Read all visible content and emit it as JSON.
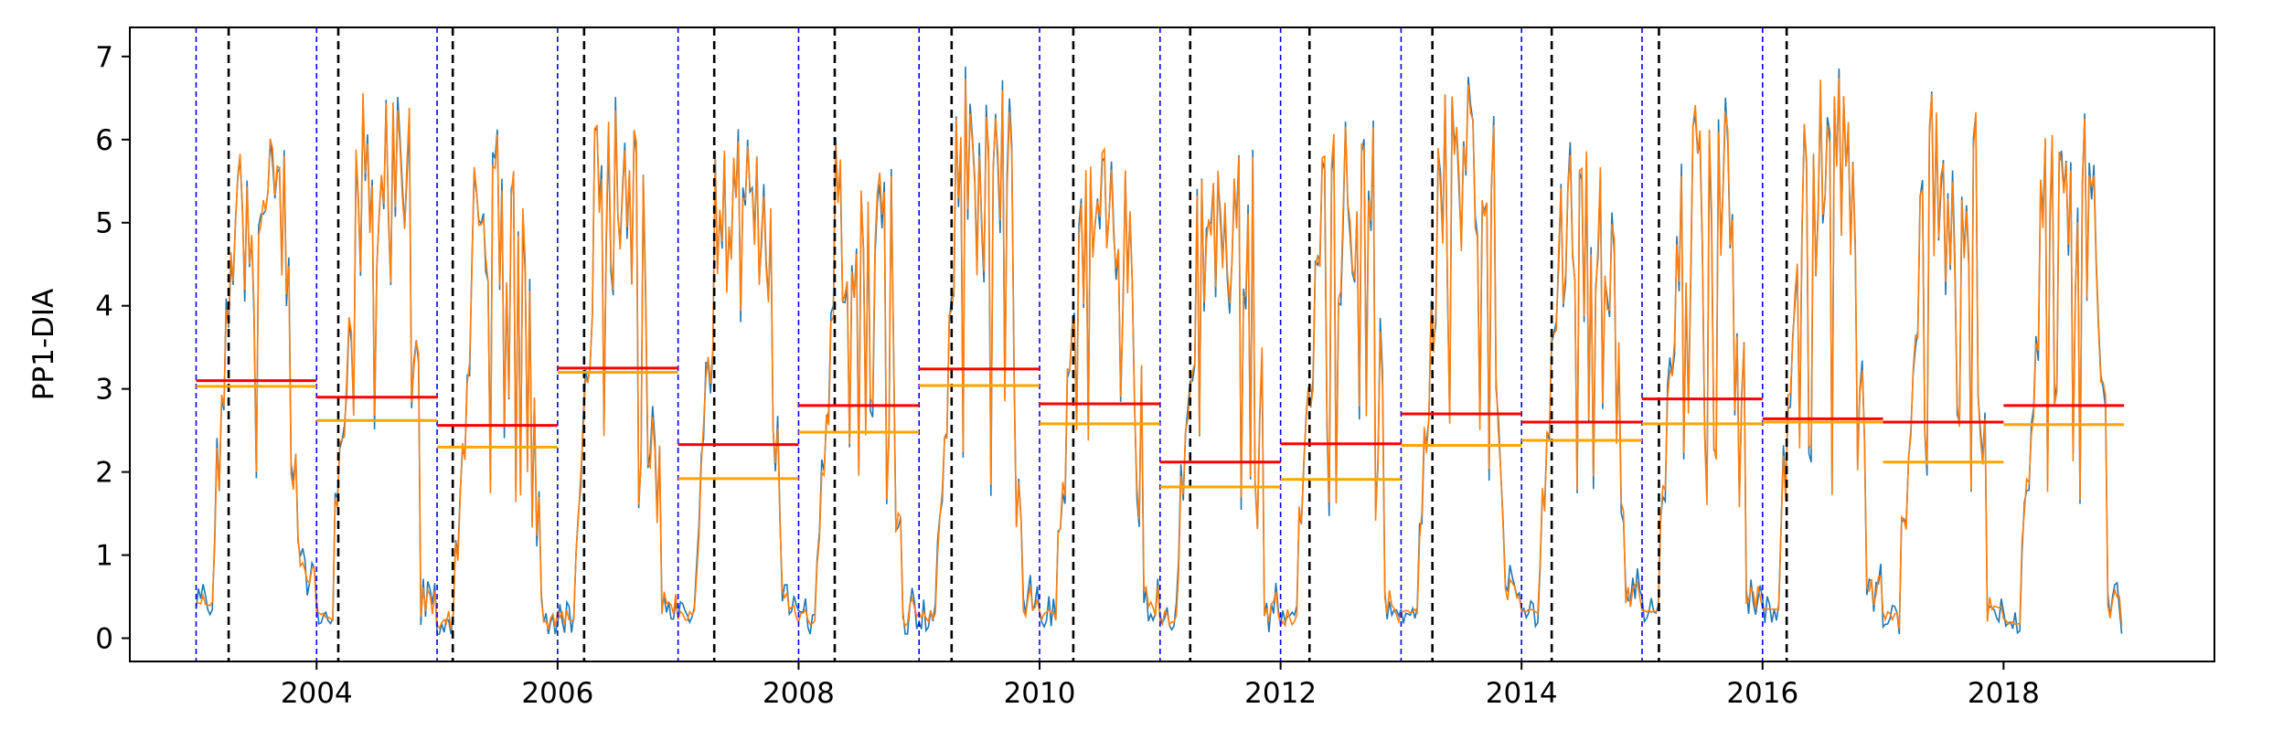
{
  "chart_data": {
    "type": "line",
    "title": "",
    "xlabel": "",
    "ylabel": "PP1-DIA",
    "xlim": [
      2002.45,
      2019.75
    ],
    "ylim": [
      -0.28,
      7.35
    ],
    "xticks": [
      2004,
      2006,
      2008,
      2010,
      2012,
      2014,
      2016,
      2018
    ],
    "xtick_labels": [
      "2004",
      "2006",
      "2008",
      "2010",
      "2012",
      "2014",
      "2016",
      "2018"
    ],
    "yticks": [
      0,
      1,
      2,
      3,
      4,
      5,
      6,
      7
    ],
    "ytick_labels": [
      "0",
      "1",
      "2",
      "3",
      "4",
      "5",
      "6",
      "7"
    ],
    "grid": false,
    "legend": "none",
    "colors": {
      "series_blue": "#1f77b4",
      "series_orange": "#ff7f0e",
      "mean_red": "#ff0000",
      "mean_orange": "#ffa500",
      "year_boundary": "#0000ff",
      "event_line": "#000000"
    },
    "years": [
      2003,
      2004,
      2005,
      2006,
      2007,
      2008,
      2009,
      2010,
      2011,
      2012,
      2013,
      2014,
      2015,
      2016,
      2017,
      2018
    ],
    "year_boundaries": [
      2003,
      2004,
      2005,
      2006,
      2007,
      2008,
      2009,
      2010,
      2011,
      2012,
      2013,
      2014,
      2015,
      2016
    ],
    "event_lines": [
      2003.27,
      2004.18,
      2005.13,
      2006.22,
      2007.3,
      2008.3,
      2009.27,
      2010.28,
      2011.25,
      2012.24,
      2013.26,
      2014.25,
      2015.14,
      2016.2
    ],
    "annual_mean_red": [
      3.1,
      2.9,
      2.56,
      3.25,
      2.33,
      2.8,
      3.24,
      2.82,
      2.12,
      2.34,
      2.7,
      2.6,
      2.88,
      2.64,
      2.6,
      2.8
    ],
    "annual_mean_orange": [
      3.03,
      2.62,
      2.3,
      3.2,
      1.92,
      2.48,
      3.04,
      2.58,
      1.82,
      1.91,
      2.32,
      2.38,
      2.58,
      2.6,
      2.12,
      2.57
    ],
    "annual_peak": [
      6.1,
      6.6,
      6.1,
      6.6,
      6.0,
      6.3,
      6.9,
      6.0,
      5.9,
      6.3,
      6.9,
      5.9,
      6.5,
      6.9,
      6.6,
      6.4
    ],
    "winter_floor": [
      0.55,
      0.2,
      0.1,
      0.15,
      0.2,
      0.15,
      0.2,
      0.2,
      0.15,
      0.15,
      0.3,
      0.3,
      0.3,
      0.35,
      0.1,
      0.15
    ],
    "series": [
      {
        "name": "",
        "color": "#1f77b4"
      },
      {
        "name": "",
        "color": "#ff7f0e"
      }
    ]
  }
}
